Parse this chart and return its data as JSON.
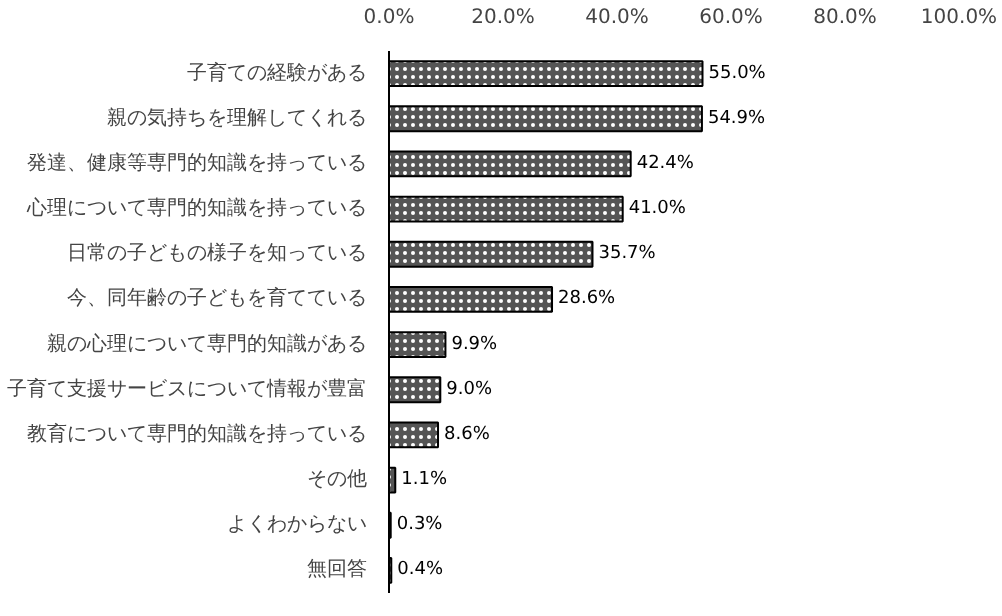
{
  "chart_data": {
    "type": "bar",
    "orientation": "horizontal",
    "categories": [
      "子育ての経験がある",
      "親の気持ちを理解してくれる",
      "発達、健康等専門的知識を持っている",
      "心理について専門的知識を持っている",
      "日常の子どもの様子を知っている",
      "今、同年齢の子どもを育てている",
      "親の心理について専門的知識がある",
      "子育て支援サービスについて情報が豊富",
      "教育について専門的知識を持っている",
      "その他",
      "よくわからない",
      "無回答"
    ],
    "values": [
      55.0,
      54.9,
      42.4,
      41.0,
      35.7,
      28.6,
      9.9,
      9.0,
      8.6,
      1.1,
      0.3,
      0.4
    ],
    "value_labels": [
      "55.0%",
      "54.9%",
      "42.4%",
      "41.0%",
      "35.7%",
      "28.6%",
      "9.9%",
      "9.0%",
      "8.6%",
      "1.1%",
      "0.3%",
      "0.4%"
    ],
    "color": "#555555",
    "xlim": [
      0,
      100
    ],
    "xticks": [
      {
        "value": 0,
        "label": "0.0%"
      },
      {
        "value": 20,
        "label": "20.0%"
      },
      {
        "value": 40,
        "label": "40.0%"
      },
      {
        "value": 60,
        "label": "60.0%"
      },
      {
        "value": 80,
        "label": "80.0%"
      },
      {
        "value": 100,
        "label": "100.0%"
      }
    ],
    "grid": false
  }
}
